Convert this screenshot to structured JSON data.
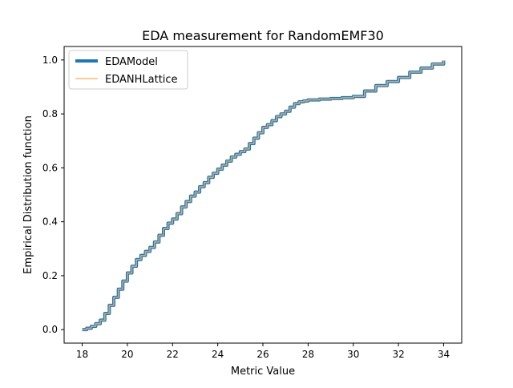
{
  "chart_data": {
    "type": "line",
    "title": "EDA measurement for RandomEMF30",
    "xlabel": "Metric Value",
    "ylabel": "Empirical Distribution function",
    "xlim": [
      17.2,
      34.8
    ],
    "ylim": [
      -0.05,
      1.05
    ],
    "x_ticks": [
      18,
      20,
      22,
      24,
      26,
      28,
      30,
      32,
      34
    ],
    "y_ticks": [
      0.0,
      0.2,
      0.4,
      0.6,
      0.8,
      1.0
    ],
    "x_tick_labels": [
      "18",
      "20",
      "22",
      "24",
      "26",
      "28",
      "30",
      "32",
      "34"
    ],
    "y_tick_labels": [
      "0.0",
      "0.2",
      "0.4",
      "0.6",
      "0.8",
      "1.0"
    ],
    "grid": false,
    "legend_position": "upper-left",
    "series": [
      {
        "name": "EDAModel",
        "color": "#1f77b4",
        "style": "thick",
        "x": [
          18.0,
          18.2,
          18.4,
          18.6,
          18.8,
          19.0,
          19.2,
          19.4,
          19.6,
          19.8,
          20.0,
          20.2,
          20.4,
          20.6,
          20.8,
          21.0,
          21.2,
          21.4,
          21.6,
          21.8,
          22.0,
          22.2,
          22.4,
          22.6,
          22.8,
          23.0,
          23.2,
          23.4,
          23.6,
          23.8,
          24.0,
          24.2,
          24.4,
          24.6,
          24.8,
          25.0,
          25.2,
          25.4,
          25.6,
          25.8,
          26.0,
          26.2,
          26.4,
          26.6,
          26.8,
          27.0,
          27.2,
          27.4,
          27.6,
          27.8,
          28.0,
          28.5,
          29.0,
          29.5,
          30.0,
          30.5,
          31.0,
          31.5,
          32.0,
          32.5,
          33.0,
          33.5,
          34.0
        ],
        "values": [
          0.0,
          0.005,
          0.012,
          0.022,
          0.035,
          0.06,
          0.09,
          0.12,
          0.15,
          0.18,
          0.21,
          0.235,
          0.26,
          0.275,
          0.29,
          0.305,
          0.325,
          0.35,
          0.375,
          0.395,
          0.41,
          0.43,
          0.455,
          0.475,
          0.495,
          0.51,
          0.53,
          0.545,
          0.565,
          0.58,
          0.595,
          0.61,
          0.625,
          0.64,
          0.65,
          0.66,
          0.67,
          0.69,
          0.71,
          0.73,
          0.75,
          0.76,
          0.775,
          0.79,
          0.8,
          0.81,
          0.825,
          0.838,
          0.845,
          0.848,
          0.852,
          0.855,
          0.857,
          0.86,
          0.865,
          0.885,
          0.905,
          0.92,
          0.935,
          0.955,
          0.97,
          0.985,
          0.998
        ]
      },
      {
        "name": "EDANHLattice",
        "color": "#ffbb78",
        "style": "thin",
        "x": [
          18.0,
          18.2,
          18.4,
          18.6,
          18.8,
          19.0,
          19.2,
          19.4,
          19.6,
          19.8,
          20.0,
          20.2,
          20.4,
          20.6,
          20.8,
          21.0,
          21.2,
          21.4,
          21.6,
          21.8,
          22.0,
          22.2,
          22.4,
          22.6,
          22.8,
          23.0,
          23.2,
          23.4,
          23.6,
          23.8,
          24.0,
          24.2,
          24.4,
          24.6,
          24.8,
          25.0,
          25.2,
          25.4,
          25.6,
          25.8,
          26.0,
          26.2,
          26.4,
          26.6,
          26.8,
          27.0,
          27.2,
          27.4,
          27.6,
          27.8,
          28.0,
          28.5,
          29.0,
          29.5,
          30.0,
          30.5,
          31.0,
          31.5,
          32.0,
          32.5,
          33.0,
          33.5,
          34.0
        ],
        "values": [
          0.0,
          0.005,
          0.012,
          0.022,
          0.035,
          0.06,
          0.09,
          0.12,
          0.15,
          0.18,
          0.21,
          0.235,
          0.26,
          0.275,
          0.29,
          0.305,
          0.325,
          0.35,
          0.375,
          0.395,
          0.41,
          0.43,
          0.455,
          0.475,
          0.495,
          0.51,
          0.53,
          0.545,
          0.565,
          0.58,
          0.595,
          0.61,
          0.625,
          0.64,
          0.65,
          0.66,
          0.67,
          0.69,
          0.71,
          0.73,
          0.75,
          0.76,
          0.775,
          0.79,
          0.8,
          0.81,
          0.825,
          0.838,
          0.845,
          0.848,
          0.852,
          0.855,
          0.857,
          0.86,
          0.865,
          0.885,
          0.905,
          0.92,
          0.935,
          0.955,
          0.97,
          0.985,
          0.998
        ]
      }
    ]
  }
}
